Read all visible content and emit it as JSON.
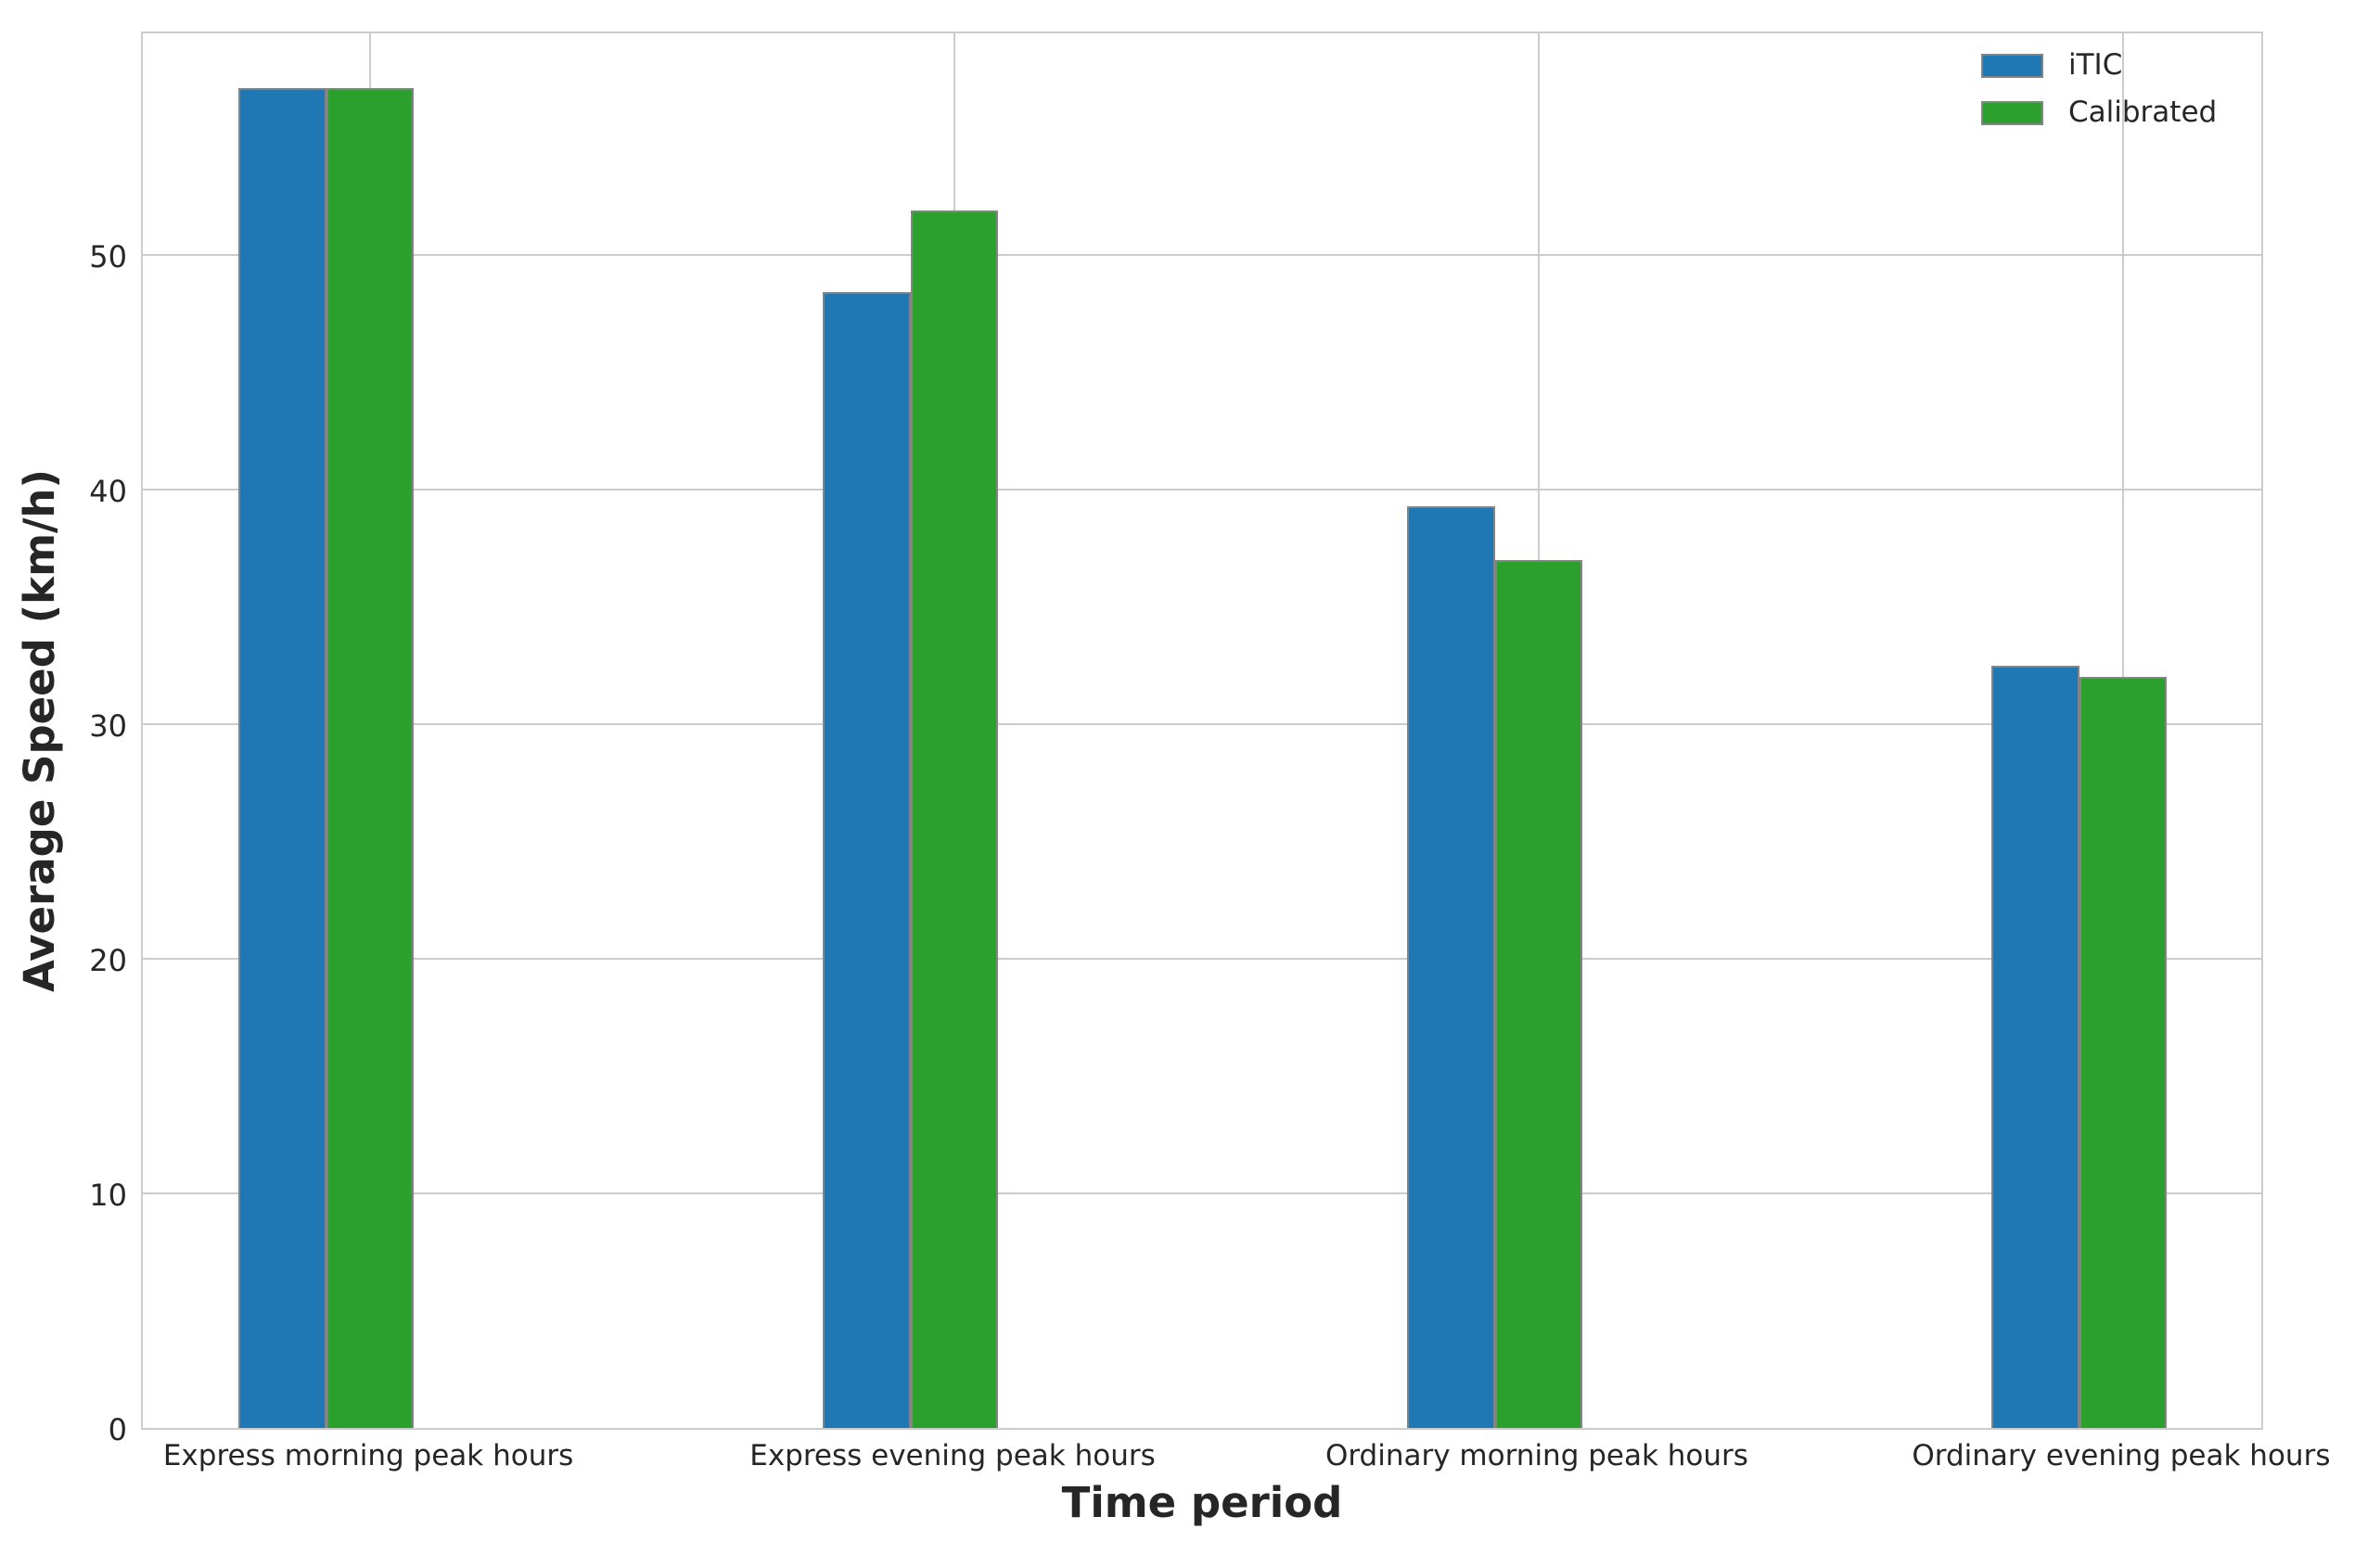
{
  "chart_data": {
    "type": "bar",
    "title": "",
    "xlabel": "Time period",
    "ylabel": "Average Speed (km/h)",
    "categories": [
      "Express morning peak hours",
      "Express evening peak hours",
      "Ordinary morning peak hours",
      "Ordinary evening peak hours"
    ],
    "series": [
      {
        "name": "iTIC",
        "color": "#1f77b4",
        "values": [
          57.1,
          48.4,
          39.3,
          32.5
        ]
      },
      {
        "name": "Calibrated",
        "color": "#2ca02c",
        "values": [
          57.1,
          51.9,
          37.0,
          32.0
        ]
      }
    ],
    "ylim": [
      0,
      59.6
    ],
    "yticks": [
      0,
      10,
      20,
      30,
      40,
      50
    ],
    "grid": true,
    "legend_position": "upper right",
    "colors": {
      "bar_edge": "#848484",
      "grid": "#cccccc",
      "text": "#262626",
      "background": "#ffffff"
    },
    "layout": {
      "xlim": [
        -0.389,
        3.243
      ],
      "bar_width": 0.15,
      "series_offsets": [
        -0.15,
        0
      ]
    }
  }
}
